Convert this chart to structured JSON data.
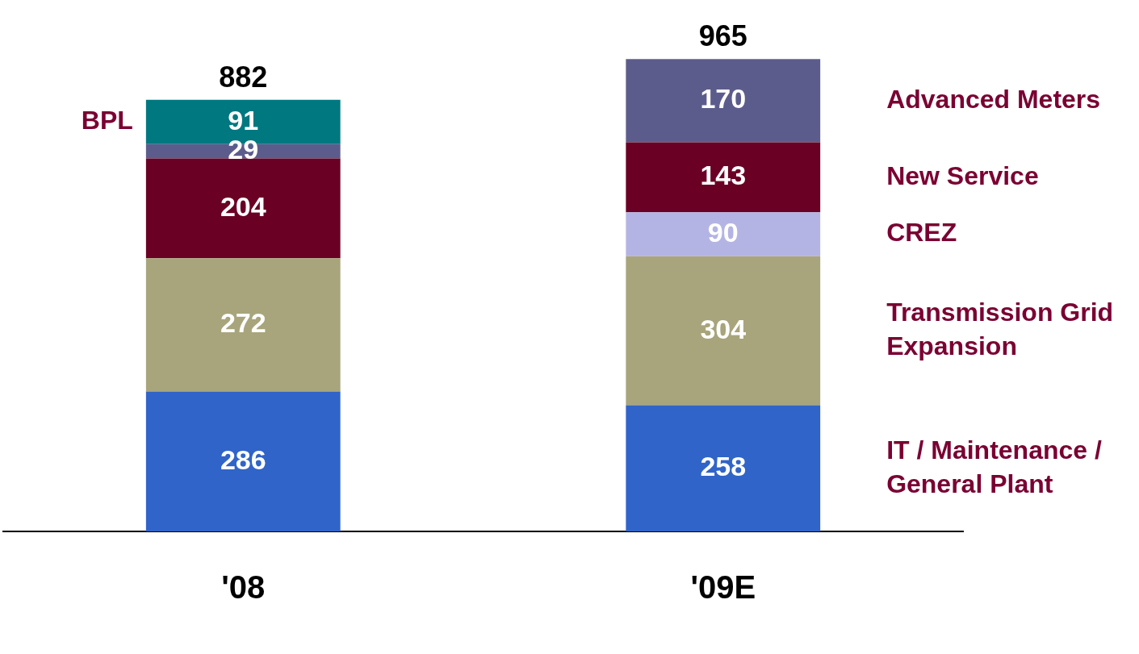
{
  "chart_data": {
    "type": "bar",
    "stacked": true,
    "categories": [
      "'08",
      "'09E"
    ],
    "series": [
      {
        "name": "IT / Maintenance / General Plant",
        "color": "#3064c8",
        "values": [
          286,
          258
        ]
      },
      {
        "name": "Transmission Grid Expansion",
        "color": "#a8a57c",
        "values": [
          272,
          304
        ]
      },
      {
        "name": "CREZ",
        "color": "#b4b4e4",
        "values": [
          null,
          90
        ]
      },
      {
        "name": "New Service",
        "color": "#6a0024",
        "values": [
          204,
          143
        ]
      },
      {
        "name": "Advanced Meters",
        "color": "#5c5c8c",
        "values": [
          29,
          170
        ]
      },
      {
        "name": "BPL",
        "color": "#007880",
        "values": [
          91,
          null
        ]
      }
    ],
    "data_labels": true,
    "totals": [
      "882",
      "965"
    ],
    "tick_labels": "x",
    "grid": false,
    "legend": false
  }
}
